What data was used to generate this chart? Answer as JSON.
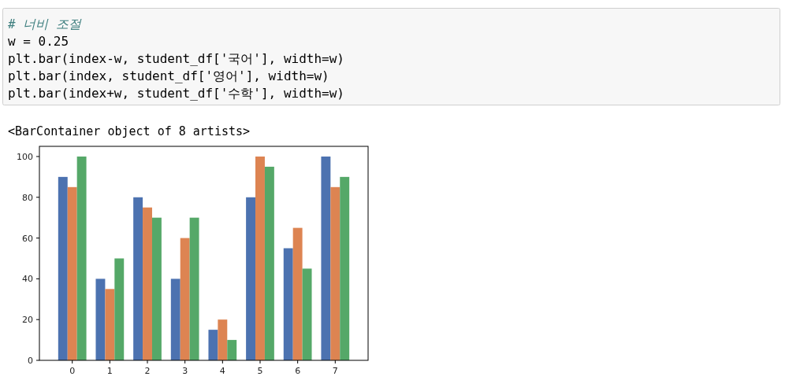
{
  "chart_data": {
    "type": "bar",
    "categories": [
      "0",
      "1",
      "2",
      "3",
      "4",
      "5",
      "6",
      "7"
    ],
    "series": [
      {
        "color": "#4c72b0",
        "values": [
          90,
          40,
          80,
          40,
          15,
          80,
          55,
          100
        ]
      },
      {
        "color": "#dd8452",
        "values": [
          85,
          35,
          75,
          60,
          20,
          100,
          65,
          85
        ]
      },
      {
        "color": "#55a868",
        "values": [
          100,
          50,
          70,
          70,
          10,
          95,
          45,
          90
        ]
      }
    ],
    "ylim": [
      0,
      105
    ],
    "yticks": [
      0,
      20,
      40,
      60,
      80,
      100
    ],
    "grid": false,
    "annotations": [
      "# 너비 조절",
      "w = 0.25",
      "plt.bar(index-w, student_df['국어'], width=w)",
      "plt.bar(index, student_df['영어'], width=w)",
      "plt.bar(index+w, student_df['수학'], width=w)",
      "<BarContainer object of 8 artists>"
    ]
  }
}
